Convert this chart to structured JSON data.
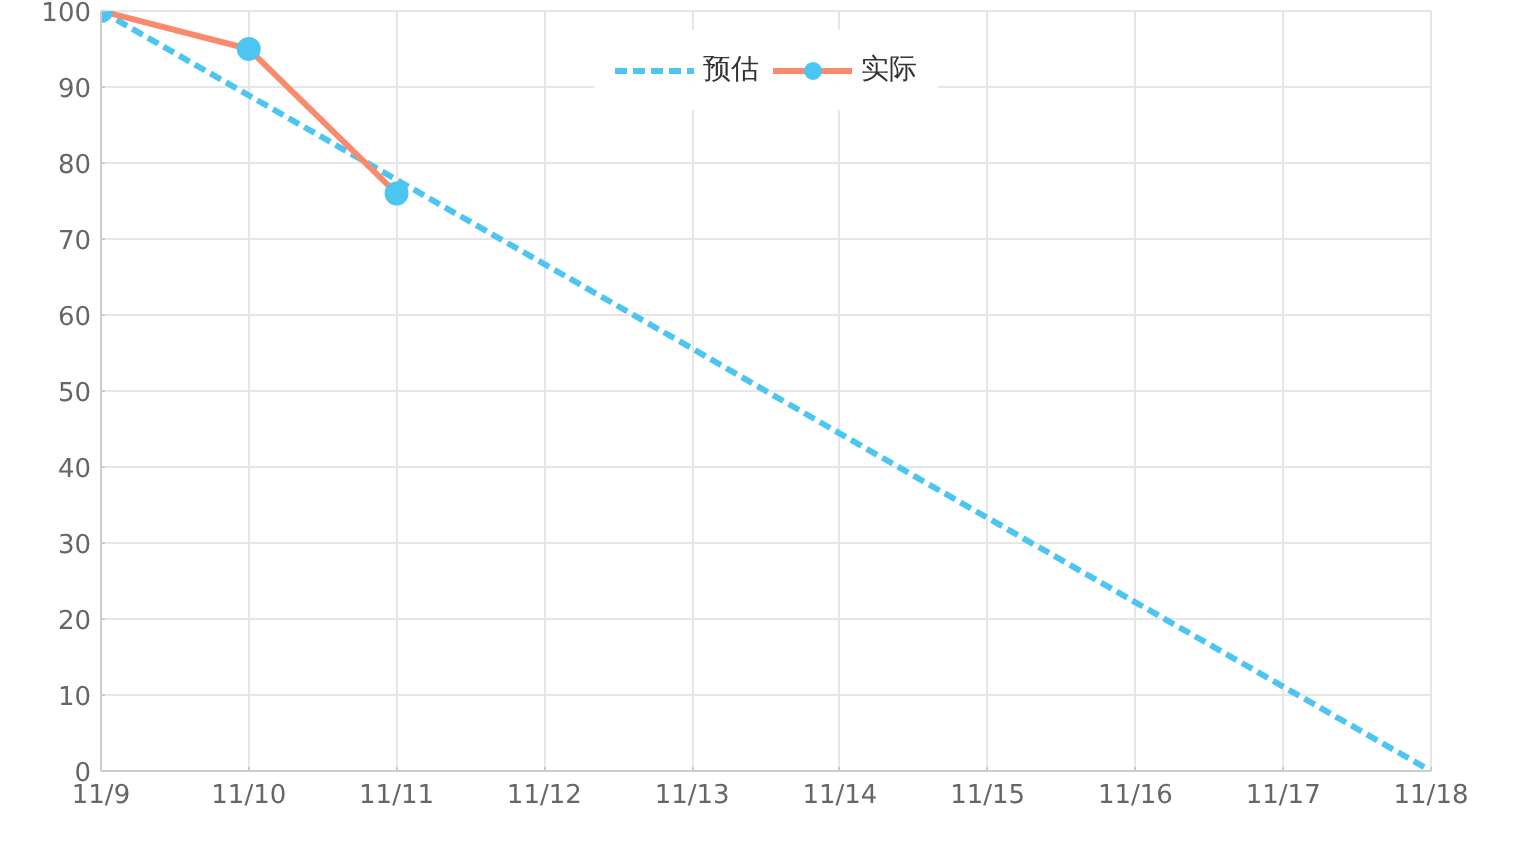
{
  "chart_data": {
    "type": "line",
    "categories": [
      "11/9",
      "11/10",
      "11/11",
      "11/12",
      "11/13",
      "11/14",
      "11/15",
      "11/16",
      "11/17",
      "11/18"
    ],
    "series": [
      {
        "name": "预估",
        "color": "#4cc6f0",
        "line_style": "dashed",
        "marker": "none",
        "values": [
          100,
          88.9,
          77.8,
          66.7,
          55.6,
          44.4,
          33.3,
          22.2,
          11.1,
          0
        ]
      },
      {
        "name": "实际",
        "color": "#f98a6e",
        "line_style": "solid",
        "marker": "circle",
        "colors": [
          "#4cc6f0",
          "#4cc6f0",
          "#4cc6f0",
          null,
          null,
          null,
          null,
          null,
          null,
          null
        ],
        "values": [
          100,
          95,
          76,
          null,
          null,
          null,
          null,
          null,
          null,
          null
        ]
      }
    ],
    "ylim": [
      0,
      100
    ],
    "yticks": [
      0,
      10,
      20,
      30,
      40,
      50,
      60,
      70,
      80,
      90,
      100
    ],
    "grid": true,
    "legend": "top"
  }
}
